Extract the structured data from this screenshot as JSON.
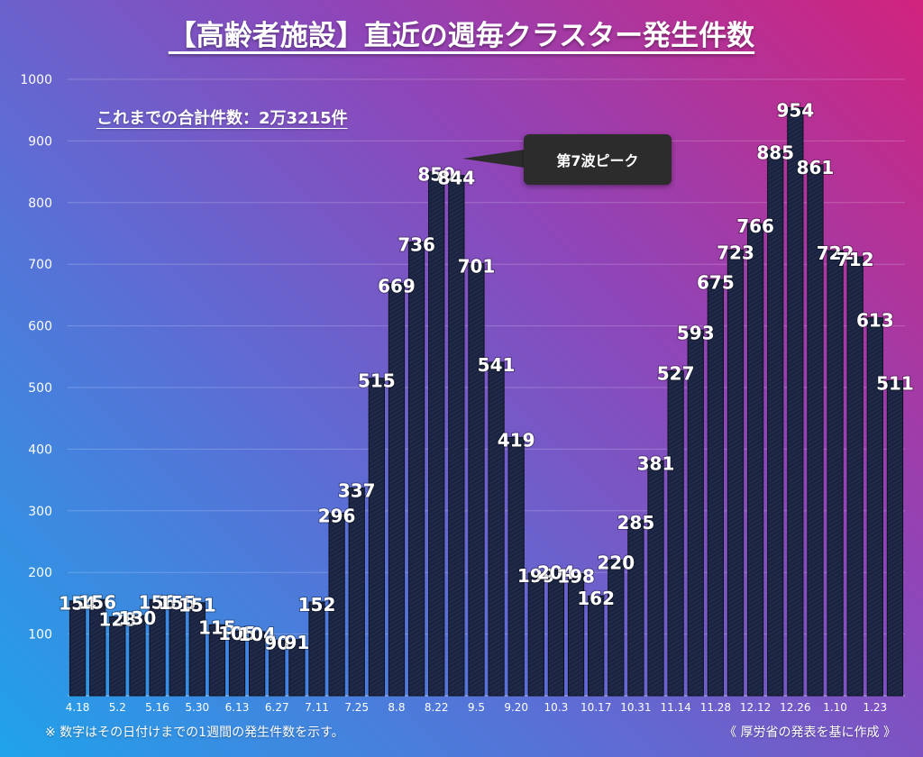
{
  "title": "【高齢者施設】直近の週毎クラスター発生件数",
  "total_note": "これまでの合計件数：2万3215件",
  "annotation": "第7波ピーク",
  "footnote": "※ 数字はその日付けまでの1週間の発生件数を示す。",
  "source": "《 厚労省の発表を基に作成 》",
  "colors": {
    "bar_fill": "#1a2340",
    "bar_edge": "#0d1020",
    "callout": "#2c2c2c"
  },
  "chart_data": {
    "type": "bar",
    "title": "【高齢者施設】直近の週毎クラスター発生件数",
    "ylim": [
      0,
      1000
    ],
    "yticks": [
      100,
      200,
      300,
      400,
      500,
      600,
      700,
      800,
      900,
      1000
    ],
    "grid": true,
    "x_tick_labels": [
      "4.18",
      "5.2",
      "5.16",
      "5.30",
      "6.13",
      "6.27",
      "7.11",
      "7.25",
      "8.8",
      "8.22",
      "9.5",
      "9.20",
      "10.3",
      "10.17",
      "10.31",
      "11.14",
      "11.28",
      "12.12",
      "12.26",
      "1.10",
      "1.23"
    ],
    "values": [
      154,
      156,
      128,
      130,
      156,
      155,
      151,
      115,
      105,
      104,
      90,
      91,
      152,
      296,
      337,
      515,
      669,
      736,
      850,
      844,
      701,
      541,
      419,
      199,
      204,
      198,
      162,
      220,
      285,
      381,
      527,
      593,
      675,
      723,
      766,
      885,
      954,
      861,
      722,
      712,
      613,
      511
    ],
    "annotations": [
      {
        "text": "第7波ピーク",
        "bar_index": 18
      }
    ]
  }
}
